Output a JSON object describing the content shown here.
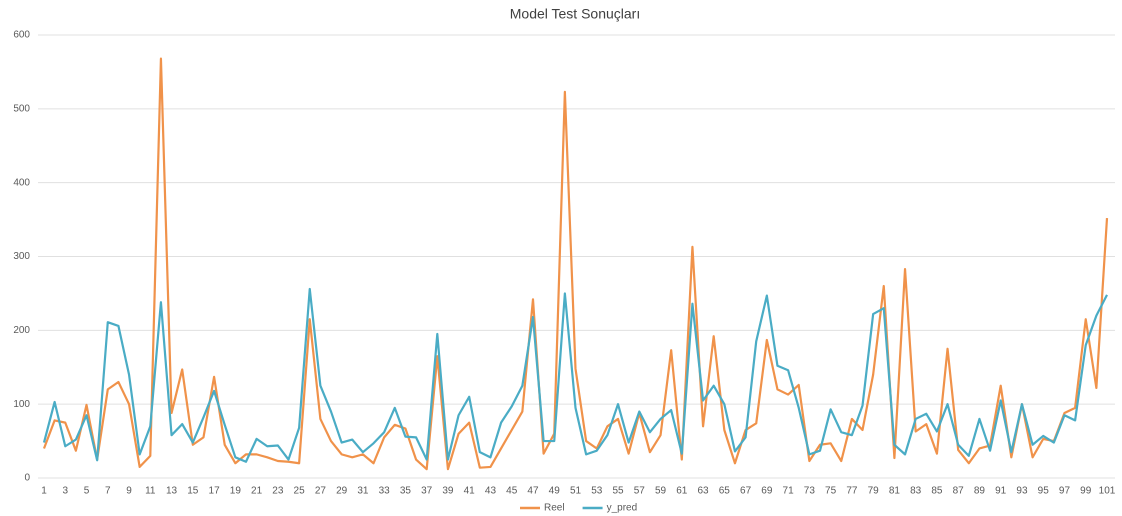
{
  "chart_data": {
    "type": "line",
    "title": "Model Test Sonuçları",
    "x": [
      1,
      2,
      3,
      4,
      5,
      6,
      7,
      8,
      9,
      10,
      11,
      12,
      13,
      14,
      15,
      16,
      17,
      18,
      19,
      20,
      21,
      22,
      23,
      24,
      25,
      26,
      27,
      28,
      29,
      30,
      31,
      32,
      33,
      34,
      35,
      36,
      37,
      38,
      39,
      40,
      41,
      42,
      43,
      44,
      45,
      46,
      47,
      48,
      49,
      50,
      51,
      52,
      53,
      54,
      55,
      56,
      57,
      58,
      59,
      60,
      61,
      62,
      63,
      64,
      65,
      66,
      67,
      68,
      69,
      70,
      71,
      72,
      73,
      74,
      75,
      76,
      77,
      78,
      79,
      80,
      81,
      82,
      83,
      84,
      85,
      86,
      87,
      88,
      89,
      90,
      91,
      92,
      93,
      94,
      95,
      96,
      97,
      98,
      99,
      100,
      101
    ],
    "xlim": [
      1,
      101
    ],
    "xticks": [
      1,
      3,
      5,
      7,
      9,
      11,
      13,
      15,
      17,
      19,
      21,
      23,
      25,
      27,
      29,
      31,
      33,
      35,
      37,
      39,
      41,
      43,
      45,
      47,
      49,
      51,
      53,
      55,
      57,
      59,
      61,
      63,
      65,
      67,
      69,
      71,
      73,
      75,
      77,
      79,
      81,
      83,
      85,
      87,
      89,
      91,
      93,
      95,
      97,
      99,
      101
    ],
    "ylim": [
      0,
      600
    ],
    "yticks": [
      0,
      100,
      200,
      300,
      400,
      500,
      600
    ],
    "grid": true,
    "legend": "bottom",
    "series": [
      {
        "name": "Reel",
        "color": "#f0924a",
        "values": [
          40,
          78,
          75,
          37,
          99,
          25,
          120,
          130,
          100,
          15,
          30,
          568,
          88,
          147,
          45,
          55,
          137,
          45,
          20,
          32,
          32,
          28,
          23,
          22,
          20,
          215,
          80,
          50,
          32,
          28,
          32,
          20,
          55,
          72,
          67,
          25,
          12,
          165,
          12,
          60,
          75,
          14,
          15,
          40,
          65,
          90,
          242,
          33,
          60,
          523,
          148,
          50,
          40,
          70,
          80,
          33,
          88,
          35,
          58,
          173,
          25,
          313,
          70,
          192,
          65,
          20,
          65,
          74,
          187,
          120,
          113,
          126,
          23,
          45,
          47,
          23,
          80,
          65,
          140,
          260,
          27,
          283,
          63,
          73,
          33,
          175,
          38,
          20,
          40,
          44,
          125,
          28,
          100,
          28,
          53,
          50,
          88,
          95,
          215,
          122,
          352
        ]
      },
      {
        "name": "y_pred",
        "color": "#4aacc5",
        "values": [
          48,
          103,
          43,
          52,
          85,
          24,
          211,
          206,
          140,
          32,
          70,
          238,
          58,
          73,
          48,
          82,
          118,
          72,
          28,
          22,
          53,
          43,
          44,
          25,
          68,
          256,
          125,
          90,
          48,
          52,
          35,
          47,
          62,
          95,
          56,
          55,
          25,
          195,
          25,
          85,
          110,
          35,
          28,
          75,
          97,
          125,
          218,
          50,
          50,
          250,
          95,
          32,
          37,
          58,
          100,
          48,
          90,
          62,
          80,
          92,
          33,
          236,
          105,
          125,
          100,
          36,
          55,
          185,
          247,
          152,
          146,
          95,
          32,
          37,
          93,
          62,
          58,
          98,
          222,
          230,
          45,
          32,
          80,
          87,
          63,
          100,
          45,
          30,
          80,
          37,
          105,
          35,
          100,
          45,
          57,
          48,
          85,
          78,
          180,
          220,
          248
        ]
      }
    ]
  }
}
